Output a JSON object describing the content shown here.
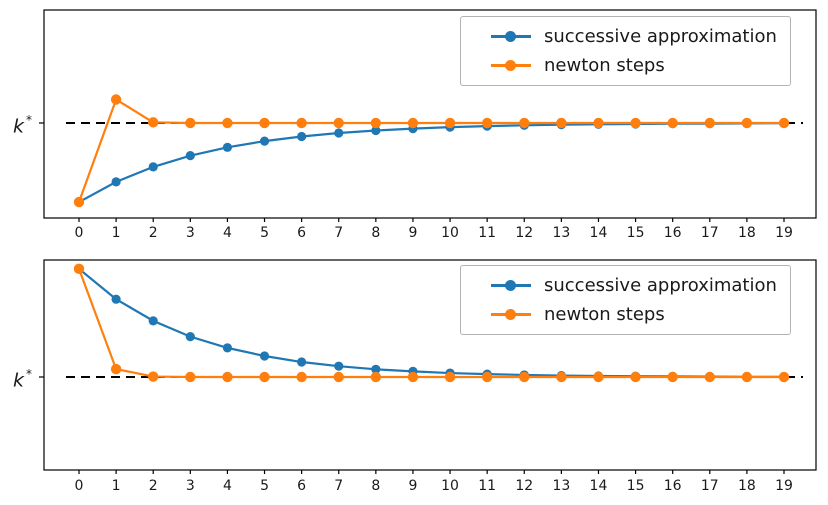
{
  "colors": {
    "successive": "#1f77b4",
    "newton": "#ff7f0e",
    "axis": "#000000",
    "text": "#1a1a1a",
    "kstar_line": "#000000",
    "legend_border": "#b3b3b3",
    "background": "#ffffff"
  },
  "ylabel": {
    "base": "k",
    "sup": "*"
  },
  "legend": {
    "items": [
      {
        "label": "successive approximation",
        "series": "successive"
      },
      {
        "label": "newton steps",
        "series": "newton"
      }
    ]
  },
  "chart_data": [
    {
      "type": "line",
      "subplot": "top",
      "title": "",
      "xlabel": "",
      "ylabel": "k*",
      "ytick_labels": [
        "k*"
      ],
      "kstar_value": 1.0,
      "kstar_line": {
        "style": "dashed",
        "color": "#000000"
      },
      "legend_position": "upper right",
      "grid": false,
      "note": "values normalized so that the steady state k* = 1; convergence to k* from below, newton overshoots once",
      "xticks": [
        0,
        1,
        2,
        3,
        4,
        5,
        6,
        7,
        8,
        9,
        10,
        11,
        12,
        13,
        14,
        15,
        16,
        17,
        18,
        19
      ],
      "series": [
        {
          "name": "successive approximation",
          "color": "#1f77b4",
          "values": [
            0.62,
            0.717,
            0.789,
            0.843,
            0.883,
            0.913,
            0.935,
            0.952,
            0.964,
            0.973,
            0.98,
            0.985,
            0.989,
            0.992,
            0.994,
            0.995,
            0.997,
            0.997,
            0.998,
            0.999
          ]
        },
        {
          "name": "newton steps",
          "color": "#ff7f0e",
          "values": [
            0.62,
            1.113,
            1.003,
            1.0,
            1.0,
            1.0,
            1.0,
            1.0,
            1.0,
            1.0,
            1.0,
            1.0,
            1.0,
            1.0,
            1.0,
            1.0,
            1.0,
            1.0,
            1.0,
            1.0
          ]
        }
      ]
    },
    {
      "type": "line",
      "subplot": "bottom",
      "title": "",
      "xlabel": "",
      "ylabel": "k*",
      "ytick_labels": [
        "k*"
      ],
      "kstar_value": 1.0,
      "kstar_line": {
        "style": "dashed",
        "color": "#000000"
      },
      "legend_position": "upper right",
      "grid": false,
      "note": "values normalized so that the steady state k* = 1; convergence to k* from above",
      "xticks": [
        0,
        1,
        2,
        3,
        4,
        5,
        6,
        7,
        8,
        9,
        10,
        11,
        12,
        13,
        14,
        15,
        16,
        17,
        18,
        19
      ],
      "series": [
        {
          "name": "successive approximation",
          "color": "#1f77b4",
          "values": [
            1.52,
            1.374,
            1.27,
            1.194,
            1.14,
            1.101,
            1.072,
            1.052,
            1.037,
            1.027,
            1.019,
            1.014,
            1.01,
            1.007,
            1.005,
            1.004,
            1.003,
            1.002,
            1.001,
            1.001
          ]
        },
        {
          "name": "newton steps",
          "color": "#ff7f0e",
          "values": [
            1.52,
            1.038,
            1.002,
            1.0,
            1.0,
            1.0,
            1.0,
            1.0,
            1.0,
            1.0,
            1.0,
            1.0,
            1.0,
            1.0,
            1.0,
            1.0,
            1.0,
            1.0,
            1.0,
            1.0
          ]
        }
      ]
    }
  ]
}
